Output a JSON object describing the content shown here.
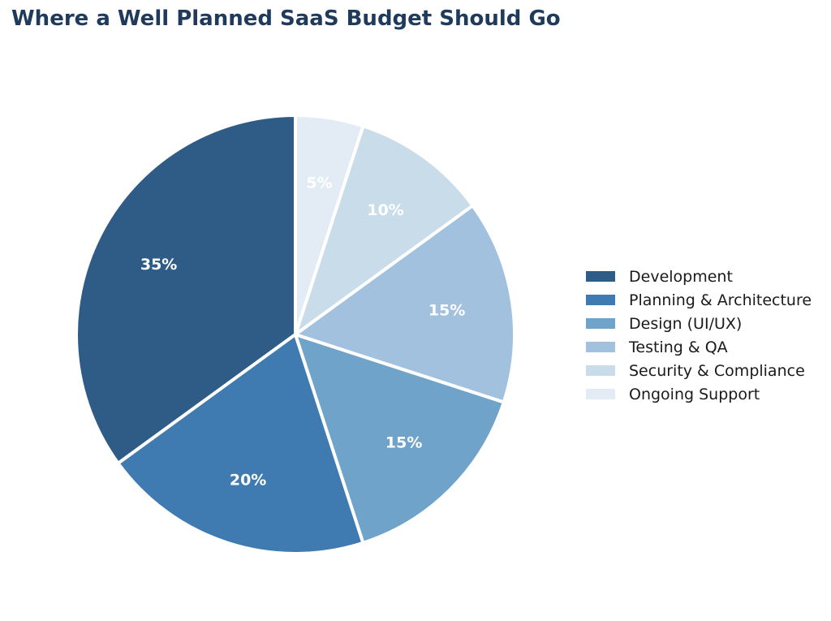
{
  "chart_data": {
    "type": "pie",
    "title": "Where a Well Planned SaaS Budget Should Go",
    "categories": [
      "Development",
      "Planning & Architecture",
      "Design (UI/UX)",
      "Testing & QA",
      "Security & Compliance",
      "Ongoing Support"
    ],
    "values": [
      35,
      20,
      15,
      15,
      10,
      5
    ],
    "data_labels": [
      "35%",
      "20%",
      "15%",
      "15%",
      "10%",
      "5%"
    ],
    "colors": [
      "#2e5c87",
      "#3f7bb0",
      "#6fa3ca",
      "#a2c1de",
      "#c8dcea",
      "#e3ecf5"
    ],
    "start_angle_deg": 90,
    "direction": "counterclockwise",
    "legend_placement": "right"
  }
}
